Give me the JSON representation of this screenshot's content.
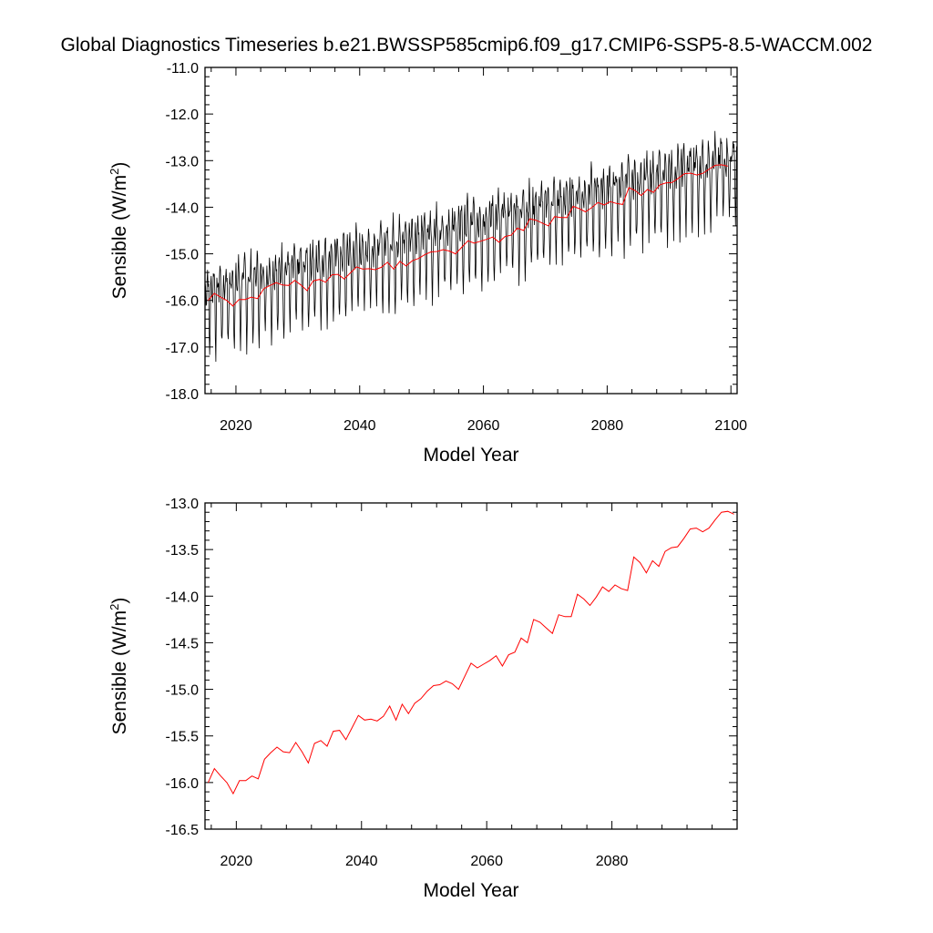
{
  "title": "Global Diagnostics Timeseries b.e21.BWSSP585cmip6.f09_g17.CMIP6-SSP5-8.5-WACCM.002",
  "colors": {
    "monthly": "#000000",
    "annual": "#ff0000"
  },
  "chart_data": [
    {
      "type": "line",
      "xlabel": "Model Year",
      "ylabel": "Sensible (W/m",
      "ylabel_sup": "2",
      "ylabel_close": ")",
      "xlim": [
        2015,
        2101
      ],
      "ylim": [
        -18.0,
        -11.0
      ],
      "xticks": [
        "2020",
        "2040",
        "2060",
        "2080",
        "2100"
      ],
      "yticks": [
        "-11.0",
        "-12.0",
        "-13.0",
        "-14.0",
        "-15.0",
        "-16.0",
        "-17.0",
        "-18.0"
      ],
      "grid": false,
      "series": [
        {
          "style": "monthly-oscillation",
          "color": "#000000",
          "x_start": 2015.0,
          "x_end": 2101.0,
          "trend_start": -16.0,
          "trend_end": -13.1,
          "high_offset": 0.75,
          "low_offset": -1.15
        },
        {
          "style": "annual-mean",
          "color": "#ff0000",
          "x": [
            2015,
            2016,
            2017,
            2018,
            2019,
            2020,
            2021,
            2022,
            2023,
            2024,
            2025,
            2026,
            2027,
            2028,
            2029,
            2030,
            2031,
            2032,
            2033,
            2034,
            2035,
            2036,
            2037,
            2038,
            2039,
            2040,
            2041,
            2042,
            2043,
            2044,
            2045,
            2046,
            2047,
            2048,
            2049,
            2050,
            2051,
            2052,
            2053,
            2054,
            2055,
            2056,
            2057,
            2058,
            2059,
            2060,
            2061,
            2062,
            2063,
            2064,
            2065,
            2066,
            2067,
            2068,
            2069,
            2070,
            2071,
            2072,
            2073,
            2074,
            2075,
            2076,
            2077,
            2078,
            2079,
            2080,
            2081,
            2082,
            2083,
            2084,
            2085,
            2086,
            2087,
            2088,
            2089,
            2090,
            2091,
            2092,
            2093,
            2094,
            2095,
            2096,
            2097,
            2098,
            2099
          ],
          "values": [
            -16.0,
            -15.85,
            -15.93,
            -16.0,
            -16.12,
            -15.98,
            -15.98,
            -15.93,
            -15.96,
            -15.75,
            -15.68,
            -15.62,
            -15.67,
            -15.68,
            -15.57,
            -15.67,
            -15.79,
            -15.58,
            -15.55,
            -15.61,
            -15.45,
            -15.44,
            -15.54,
            -15.41,
            -15.28,
            -15.33,
            -15.32,
            -15.34,
            -15.29,
            -15.18,
            -15.33,
            -15.16,
            -15.26,
            -15.15,
            -15.1,
            -15.02,
            -14.96,
            -14.95,
            -14.91,
            -14.94,
            -15.0,
            -14.86,
            -14.72,
            -14.77,
            -14.73,
            -14.69,
            -14.64,
            -14.75,
            -14.63,
            -14.6,
            -14.45,
            -14.5,
            -14.25,
            -14.28,
            -14.34,
            -14.4,
            -14.2,
            -14.22,
            -14.22,
            -13.98,
            -14.03,
            -14.1,
            -14.01,
            -13.9,
            -13.95,
            -13.88,
            -13.92,
            -13.94,
            -13.58,
            -13.64,
            -13.75,
            -13.62,
            -13.68,
            -13.52,
            -13.48,
            -13.47,
            -13.38,
            -13.28,
            -13.27,
            -13.31,
            -13.27,
            -13.18,
            -13.1,
            -13.09,
            -13.12
          ]
        }
      ]
    },
    {
      "type": "line",
      "xlabel": "Model Year",
      "ylabel": "Sensible (W/m",
      "ylabel_sup": "2",
      "ylabel_close": ")",
      "xlim": [
        2015,
        2100
      ],
      "ylim": [
        -16.5,
        -13.0
      ],
      "xticks": [
        "2020",
        "2040",
        "2060",
        "2080"
      ],
      "yticks": [
        "-13.0",
        "-13.5",
        "-14.0",
        "-14.5",
        "-15.0",
        "-15.5",
        "-16.0",
        "-16.5"
      ],
      "grid": false,
      "series": [
        {
          "style": "annual-mean",
          "color": "#ff0000",
          "ref": 0
        }
      ]
    }
  ]
}
